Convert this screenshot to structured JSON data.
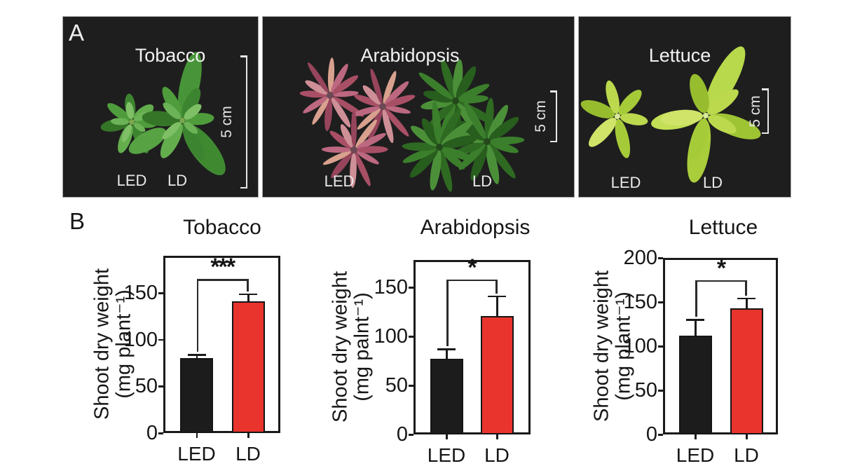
{
  "panel_a": {
    "label": "A",
    "photos": [
      {
        "title": "Tobacco",
        "condition_labels": [
          "LED",
          "LD"
        ],
        "scale_bar_label": "5 cm"
      },
      {
        "title": "Arabidopsis",
        "condition_labels": [
          "LED",
          "LD"
        ],
        "scale_bar_label": "5 cm"
      },
      {
        "title": "Lettuce",
        "condition_labels": [
          "LED",
          "LD"
        ],
        "scale_bar_label": "5 cm"
      }
    ]
  },
  "panel_b": {
    "label": "B"
  },
  "chart_data": [
    {
      "type": "bar",
      "title": "Tobacco",
      "categories": [
        "LED",
        "LD"
      ],
      "values": [
        80,
        141
      ],
      "errors": [
        4,
        8
      ],
      "significance": "***",
      "ylabel": "Shoot dry weight",
      "ylabel_units": "(mg plant⁻¹)",
      "yticks": [
        0,
        50,
        100,
        150
      ],
      "ylim": [
        0,
        190
      ],
      "bracket_y": 165,
      "bar_colors": [
        "#1c1c1c",
        "#e9342e"
      ],
      "grid": false,
      "legend": "none"
    },
    {
      "type": "bar",
      "title": "Arabidopsis",
      "categories": [
        "LED",
        "LD"
      ],
      "values": [
        77,
        121
      ],
      "errors": [
        10,
        20
      ],
      "significance": "*",
      "ylabel": "Shoot dry weight",
      "ylabel_units": "(mg palnt⁻¹)",
      "yticks": [
        0,
        50,
        100,
        150
      ],
      "ylim": [
        0,
        178
      ],
      "bracket_y": 158,
      "bar_colors": [
        "#1c1c1c",
        "#e9342e"
      ],
      "grid": false,
      "legend": "none"
    },
    {
      "type": "bar",
      "title": "Lettuce",
      "categories": [
        "LED",
        "LD"
      ],
      "values": [
        112,
        143
      ],
      "errors": [
        18,
        11
      ],
      "significance": "*",
      "ylabel": "Shoot dry weight",
      "ylabel_units": "(mg plant⁻¹)",
      "yticks": [
        0,
        50,
        100,
        150,
        200
      ],
      "ylim": [
        0,
        200
      ],
      "bracket_y": 175,
      "bar_colors": [
        "#1c1c1c",
        "#e9342e"
      ],
      "grid": false,
      "legend": "none"
    }
  ],
  "colors": {
    "led_bar": "#1c1c1c",
    "ld_bar": "#e9342e",
    "photo_background": "#1e1e1e",
    "axis": "#1a1a1a"
  }
}
